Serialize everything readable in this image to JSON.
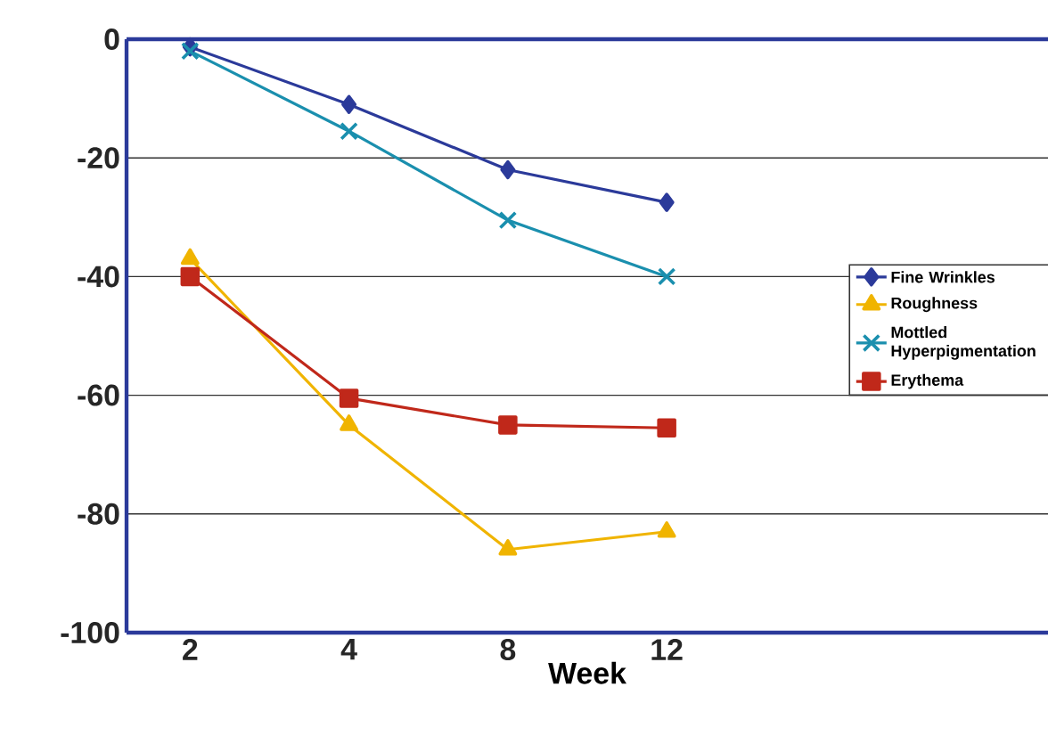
{
  "chart_data": {
    "type": "line",
    "xlabel": "Week",
    "categories": [
      "2",
      "4",
      "8",
      "12"
    ],
    "ylim": [
      -100,
      0
    ],
    "yticks": [
      -100,
      -80,
      -60,
      -40,
      -20,
      0
    ],
    "grid": "y",
    "legend": "right",
    "series": [
      {
        "name": "Fine Wrinkles",
        "color": "#2b3a9a",
        "marker": "diamond",
        "values": [
          -1.3,
          -11,
          -22,
          -27.5
        ]
      },
      {
        "name": "Roughness",
        "color": "#f0b400",
        "marker": "triangle",
        "values": [
          -37,
          -65,
          -86,
          -83
        ]
      },
      {
        "name": "Mottled Hyperpigmentation",
        "color": "#1a8fae",
        "marker": "cross",
        "values": [
          -2,
          -15.5,
          -30.5,
          -40
        ]
      },
      {
        "name": "Erythema",
        "color": "#c0281a",
        "marker": "square",
        "values": [
          -40,
          -60.5,
          -65,
          -65.5
        ]
      }
    ]
  }
}
